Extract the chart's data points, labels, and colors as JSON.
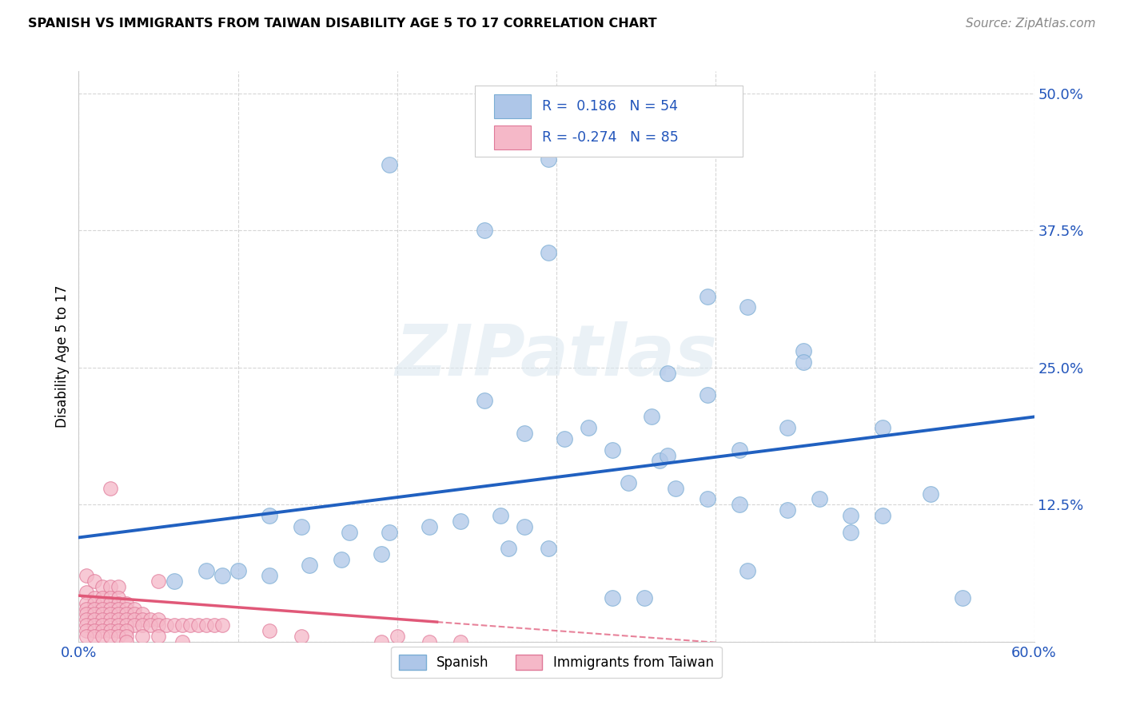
{
  "title": "SPANISH VS IMMIGRANTS FROM TAIWAN DISABILITY AGE 5 TO 17 CORRELATION CHART",
  "source": "Source: ZipAtlas.com",
  "ylabel": "Disability Age 5 to 17",
  "xlim": [
    0.0,
    0.6
  ],
  "ylim": [
    0.0,
    0.52
  ],
  "xticks": [
    0.0,
    0.1,
    0.2,
    0.3,
    0.4,
    0.5,
    0.6
  ],
  "xticklabels": [
    "0.0%",
    "",
    "",
    "",
    "",
    "",
    "60.0%"
  ],
  "ytick_positions": [
    0.0,
    0.125,
    0.25,
    0.375,
    0.5
  ],
  "ytick_labels": [
    "",
    "12.5%",
    "25.0%",
    "37.5%",
    "50.0%"
  ],
  "grid_color": "#cccccc",
  "watermark_text": "ZIPatlas",
  "spanish_color": "#aec6e8",
  "spanish_edge_color": "#7aadd4",
  "taiwan_color": "#f5b8c8",
  "taiwan_edge_color": "#e07898",
  "blue_line_color": "#2060c0",
  "pink_line_color": "#e05878",
  "r_spanish": 0.186,
  "n_spanish": 54,
  "r_taiwan": -0.274,
  "n_taiwan": 85,
  "spanish_scatter_x": [
    0.195,
    0.295,
    0.255,
    0.295,
    0.395,
    0.42,
    0.455,
    0.455,
    0.255,
    0.37,
    0.395,
    0.36,
    0.32,
    0.28,
    0.305,
    0.335,
    0.365,
    0.37,
    0.12,
    0.14,
    0.17,
    0.195,
    0.22,
    0.24,
    0.265,
    0.28,
    0.09,
    0.06,
    0.08,
    0.1,
    0.12,
    0.145,
    0.165,
    0.19,
    0.295,
    0.27,
    0.505,
    0.535,
    0.485,
    0.415,
    0.445,
    0.345,
    0.375,
    0.395,
    0.415,
    0.445,
    0.465,
    0.485,
    0.505,
    0.42,
    0.555,
    0.355,
    0.335
  ],
  "spanish_scatter_y": [
    0.435,
    0.44,
    0.375,
    0.355,
    0.315,
    0.305,
    0.265,
    0.255,
    0.22,
    0.245,
    0.225,
    0.205,
    0.195,
    0.19,
    0.185,
    0.175,
    0.165,
    0.17,
    0.115,
    0.105,
    0.1,
    0.1,
    0.105,
    0.11,
    0.115,
    0.105,
    0.06,
    0.055,
    0.065,
    0.065,
    0.06,
    0.07,
    0.075,
    0.08,
    0.085,
    0.085,
    0.195,
    0.135,
    0.115,
    0.175,
    0.195,
    0.145,
    0.14,
    0.13,
    0.125,
    0.12,
    0.13,
    0.1,
    0.115,
    0.065,
    0.04,
    0.04,
    0.04
  ],
  "taiwan_scatter_x": [
    0.005,
    0.01,
    0.015,
    0.02,
    0.025,
    0.005,
    0.01,
    0.015,
    0.02,
    0.025,
    0.005,
    0.01,
    0.015,
    0.02,
    0.025,
    0.03,
    0.005,
    0.01,
    0.015,
    0.02,
    0.025,
    0.03,
    0.035,
    0.005,
    0.01,
    0.015,
    0.02,
    0.025,
    0.03,
    0.035,
    0.04,
    0.005,
    0.01,
    0.015,
    0.02,
    0.025,
    0.03,
    0.035,
    0.04,
    0.045,
    0.05,
    0.005,
    0.01,
    0.015,
    0.02,
    0.025,
    0.03,
    0.035,
    0.04,
    0.045,
    0.05,
    0.055,
    0.06,
    0.065,
    0.07,
    0.075,
    0.08,
    0.085,
    0.09,
    0.005,
    0.01,
    0.015,
    0.02,
    0.025,
    0.03,
    0.12,
    0.14,
    0.2,
    0.22,
    0.065,
    0.19,
    0.24,
    0.005,
    0.01,
    0.015,
    0.02,
    0.025,
    0.03,
    0.04,
    0.05,
    0.02,
    0.05,
    0.03
  ],
  "taiwan_scatter_y": [
    0.06,
    0.055,
    0.05,
    0.05,
    0.05,
    0.045,
    0.04,
    0.04,
    0.04,
    0.04,
    0.035,
    0.035,
    0.035,
    0.035,
    0.035,
    0.035,
    0.03,
    0.03,
    0.03,
    0.03,
    0.03,
    0.03,
    0.03,
    0.025,
    0.025,
    0.025,
    0.025,
    0.025,
    0.025,
    0.025,
    0.025,
    0.02,
    0.02,
    0.02,
    0.02,
    0.02,
    0.02,
    0.02,
    0.02,
    0.02,
    0.02,
    0.015,
    0.015,
    0.015,
    0.015,
    0.015,
    0.015,
    0.015,
    0.015,
    0.015,
    0.015,
    0.015,
    0.015,
    0.015,
    0.015,
    0.015,
    0.015,
    0.015,
    0.015,
    0.01,
    0.01,
    0.01,
    0.01,
    0.01,
    0.01,
    0.01,
    0.005,
    0.005,
    0.0,
    0.0,
    0.0,
    0.0,
    0.005,
    0.005,
    0.005,
    0.005,
    0.005,
    0.005,
    0.005,
    0.005,
    0.14,
    0.055,
    0.0
  ],
  "blue_trendline": [
    0.0,
    0.6,
    0.095,
    0.205
  ],
  "pink_trendline_solid": [
    0.0,
    0.225,
    0.042,
    0.018
  ],
  "pink_trendline_dashed": [
    0.225,
    0.6,
    0.018,
    -0.022
  ],
  "legend_r_color": "#2255bb",
  "legend_text_black": "#222222"
}
